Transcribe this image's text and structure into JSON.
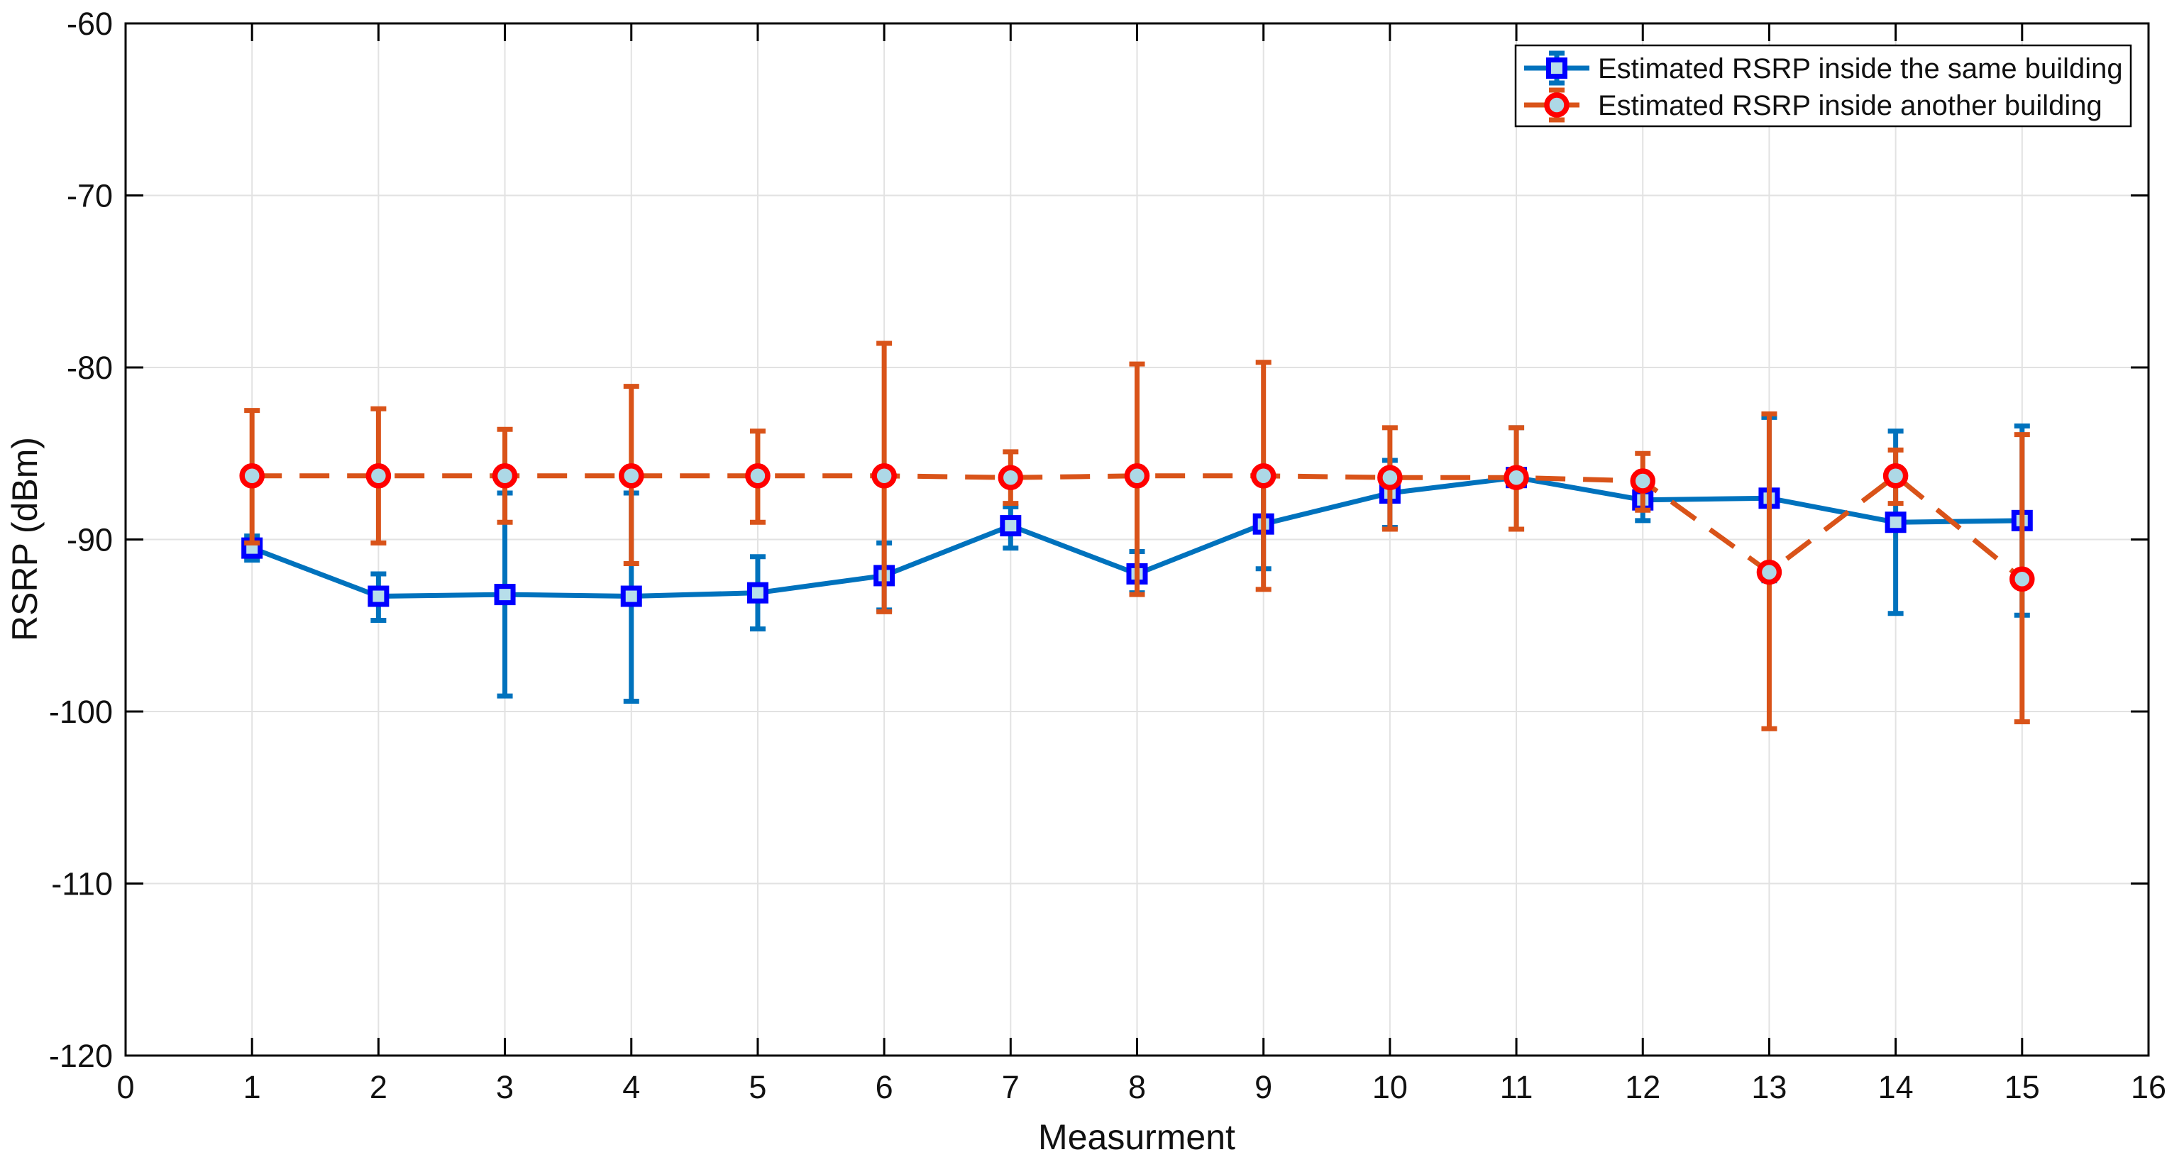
{
  "figure": {
    "background": "#ffffff",
    "border_color": "#000000",
    "grid_color": "#e2e2e2",
    "tick_color": "#000000"
  },
  "chart_data": {
    "type": "line",
    "subtype": "errorbar",
    "title": "",
    "xlabel": "Measurment",
    "ylabel": "RSRP (dBm)",
    "xlim": [
      0,
      16
    ],
    "ylim": [
      -120,
      -60
    ],
    "grid": "on",
    "legend_position": "top-right",
    "xticks": [
      0,
      1,
      2,
      3,
      4,
      5,
      6,
      7,
      8,
      9,
      10,
      11,
      12,
      13,
      14,
      15,
      16
    ],
    "xtick_labels": [
      "0",
      "1",
      "2",
      "3",
      "4",
      "5",
      "6",
      "7",
      "8",
      "9",
      "10",
      "11",
      "12",
      "13",
      "14",
      "15",
      "16"
    ],
    "yticks": [
      -120,
      -110,
      -100,
      -90,
      -80,
      -70,
      -60
    ],
    "ytick_labels": [
      "-120",
      "-110",
      "-100",
      "-90",
      "-80",
      "-70",
      "-60"
    ],
    "x": [
      1,
      2,
      3,
      4,
      5,
      6,
      7,
      8,
      9,
      10,
      11,
      12,
      13,
      14,
      15
    ],
    "series": [
      {
        "name": "Estimated RSRP inside the same building",
        "color": "#0072BD",
        "line_style": "solid",
        "marker": "square",
        "marker_edge": "#0000FF",
        "marker_face": "#B7DEEA",
        "values": [
          -90.5,
          -93.3,
          -93.2,
          -93.3,
          -93.1,
          -92.1,
          -89.2,
          -92.0,
          -89.1,
          -87.3,
          -86.4,
          -87.7,
          -87.6,
          -89.0,
          -88.9
        ],
        "err_lo": [
          -91.2,
          -94.7,
          -99.1,
          -99.4,
          -95.2,
          -94.1,
          -90.5,
          -93.1,
          -91.7,
          -89.3,
          -89.4,
          -88.9,
          -92.4,
          -94.3,
          -94.4
        ],
        "err_hi": [
          -89.8,
          -92.0,
          -87.3,
          -87.3,
          -91.0,
          -90.2,
          -88.1,
          -90.7,
          -86.5,
          -85.4,
          -83.5,
          -86.5,
          -82.9,
          -83.7,
          -83.4
        ]
      },
      {
        "name": "Estimated RSRP inside another building",
        "color": "#D95319",
        "line_style": "dashed",
        "marker": "circle",
        "marker_edge": "#FF0000",
        "marker_face": "#ADD8E6",
        "values": [
          -86.3,
          -86.3,
          -86.3,
          -86.3,
          -86.3,
          -86.3,
          -86.4,
          -86.3,
          -86.3,
          -86.4,
          -86.4,
          -86.6,
          -91.9,
          -86.3,
          -92.3
        ],
        "err_lo": [
          -90.2,
          -90.2,
          -89.0,
          -91.4,
          -89.0,
          -94.2,
          -87.9,
          -93.2,
          -92.9,
          -89.4,
          -89.4,
          -88.3,
          -101.0,
          -87.9,
          -100.6
        ],
        "err_hi": [
          -82.5,
          -82.4,
          -83.6,
          -81.1,
          -83.7,
          -78.6,
          -84.9,
          -79.8,
          -79.7,
          -83.5,
          -83.5,
          -85.0,
          -82.7,
          -84.8,
          -83.9
        ]
      }
    ]
  }
}
